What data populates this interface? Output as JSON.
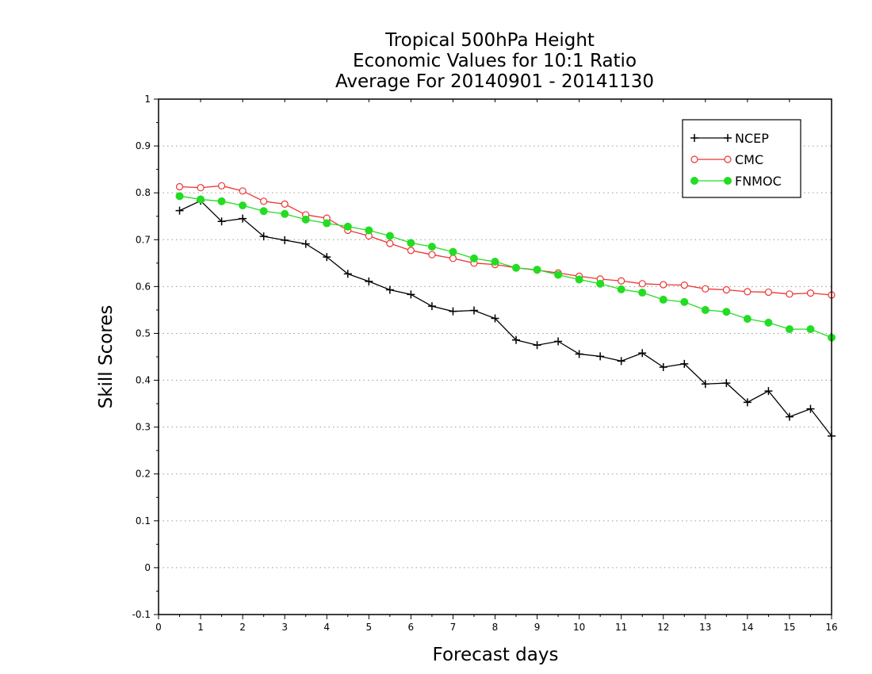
{
  "chart_data": {
    "type": "line",
    "title": [
      "Tropical 500hPa Height",
      "Economic Values for 10:1 Ratio",
      "Average For 20140901 - 20141130"
    ],
    "xlabel": "Forecast days",
    "ylabel": "Skill Scores",
    "xlim": [
      0,
      16
    ],
    "ylim": [
      -0.1,
      1
    ],
    "xticks": [
      "0",
      "1",
      "2",
      "3",
      "4",
      "5",
      "6",
      "7",
      "8",
      "9",
      "10",
      "11",
      "12",
      "13",
      "14",
      "15",
      "16"
    ],
    "yticks": [
      "-0.1",
      "0",
      "0.1",
      "0.2",
      "0.3",
      "0.4",
      "0.5",
      "0.6",
      "0.7",
      "0.8",
      "0.9",
      "1"
    ],
    "grid": "horizontal dotted",
    "legend_position": "top-right",
    "x": [
      0.5,
      1,
      1.5,
      2,
      2.5,
      3,
      3.5,
      4,
      4.5,
      5,
      5.5,
      6,
      6.5,
      7,
      7.5,
      8,
      8.5,
      9,
      9.5,
      10,
      10.5,
      11,
      11.5,
      12,
      12.5,
      13,
      13.5,
      14,
      14.5,
      15,
      15.5,
      16
    ],
    "series": [
      {
        "name": "NCEP",
        "color": "#000000",
        "marker": "plus",
        "values": [
          0.762,
          0.783,
          0.739,
          0.745,
          0.707,
          0.699,
          0.691,
          0.663,
          0.627,
          0.611,
          0.593,
          0.583,
          0.558,
          0.547,
          0.549,
          0.532,
          0.486,
          0.475,
          0.483,
          0.456,
          0.451,
          0.441,
          0.458,
          0.428,
          0.435,
          0.392,
          0.394,
          0.353,
          0.377,
          0.322,
          0.339,
          0.281
        ]
      },
      {
        "name": "CMC",
        "color": "#ee3333",
        "marker": "open-circle",
        "values": [
          0.813,
          0.811,
          0.815,
          0.804,
          0.782,
          0.776,
          0.753,
          0.746,
          0.72,
          0.708,
          0.692,
          0.677,
          0.668,
          0.66,
          0.65,
          0.647,
          0.64,
          0.635,
          0.629,
          0.622,
          0.616,
          0.612,
          0.606,
          0.604,
          0.603,
          0.595,
          0.593,
          0.589,
          0.588,
          0.584,
          0.586,
          0.582
        ]
      },
      {
        "name": "FNMOC",
        "color": "#22dd22",
        "marker": "filled-circle",
        "values": [
          0.793,
          0.786,
          0.782,
          0.773,
          0.761,
          0.755,
          0.743,
          0.735,
          0.728,
          0.72,
          0.708,
          0.693,
          0.685,
          0.674,
          0.66,
          0.653,
          0.64,
          0.636,
          0.625,
          0.615,
          0.606,
          0.594,
          0.587,
          0.572,
          0.567,
          0.55,
          0.546,
          0.531,
          0.523,
          0.509,
          0.509,
          0.491
        ]
      }
    ]
  }
}
